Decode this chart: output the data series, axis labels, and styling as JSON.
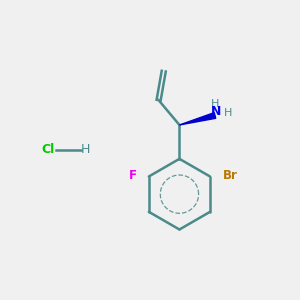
{
  "background_color": "#f0f0f0",
  "bond_color": "#4a8a8a",
  "F_color": "#ee00ee",
  "Br_color": "#bb7700",
  "N_color": "#0000ee",
  "Cl_color": "#00cc00",
  "H_color": "#4a8a8a",
  "wedge_color": "#0000cc",
  "figsize": [
    3.0,
    3.0
  ],
  "dpi": 100,
  "xlim": [
    0,
    10
  ],
  "ylim": [
    0,
    10
  ]
}
